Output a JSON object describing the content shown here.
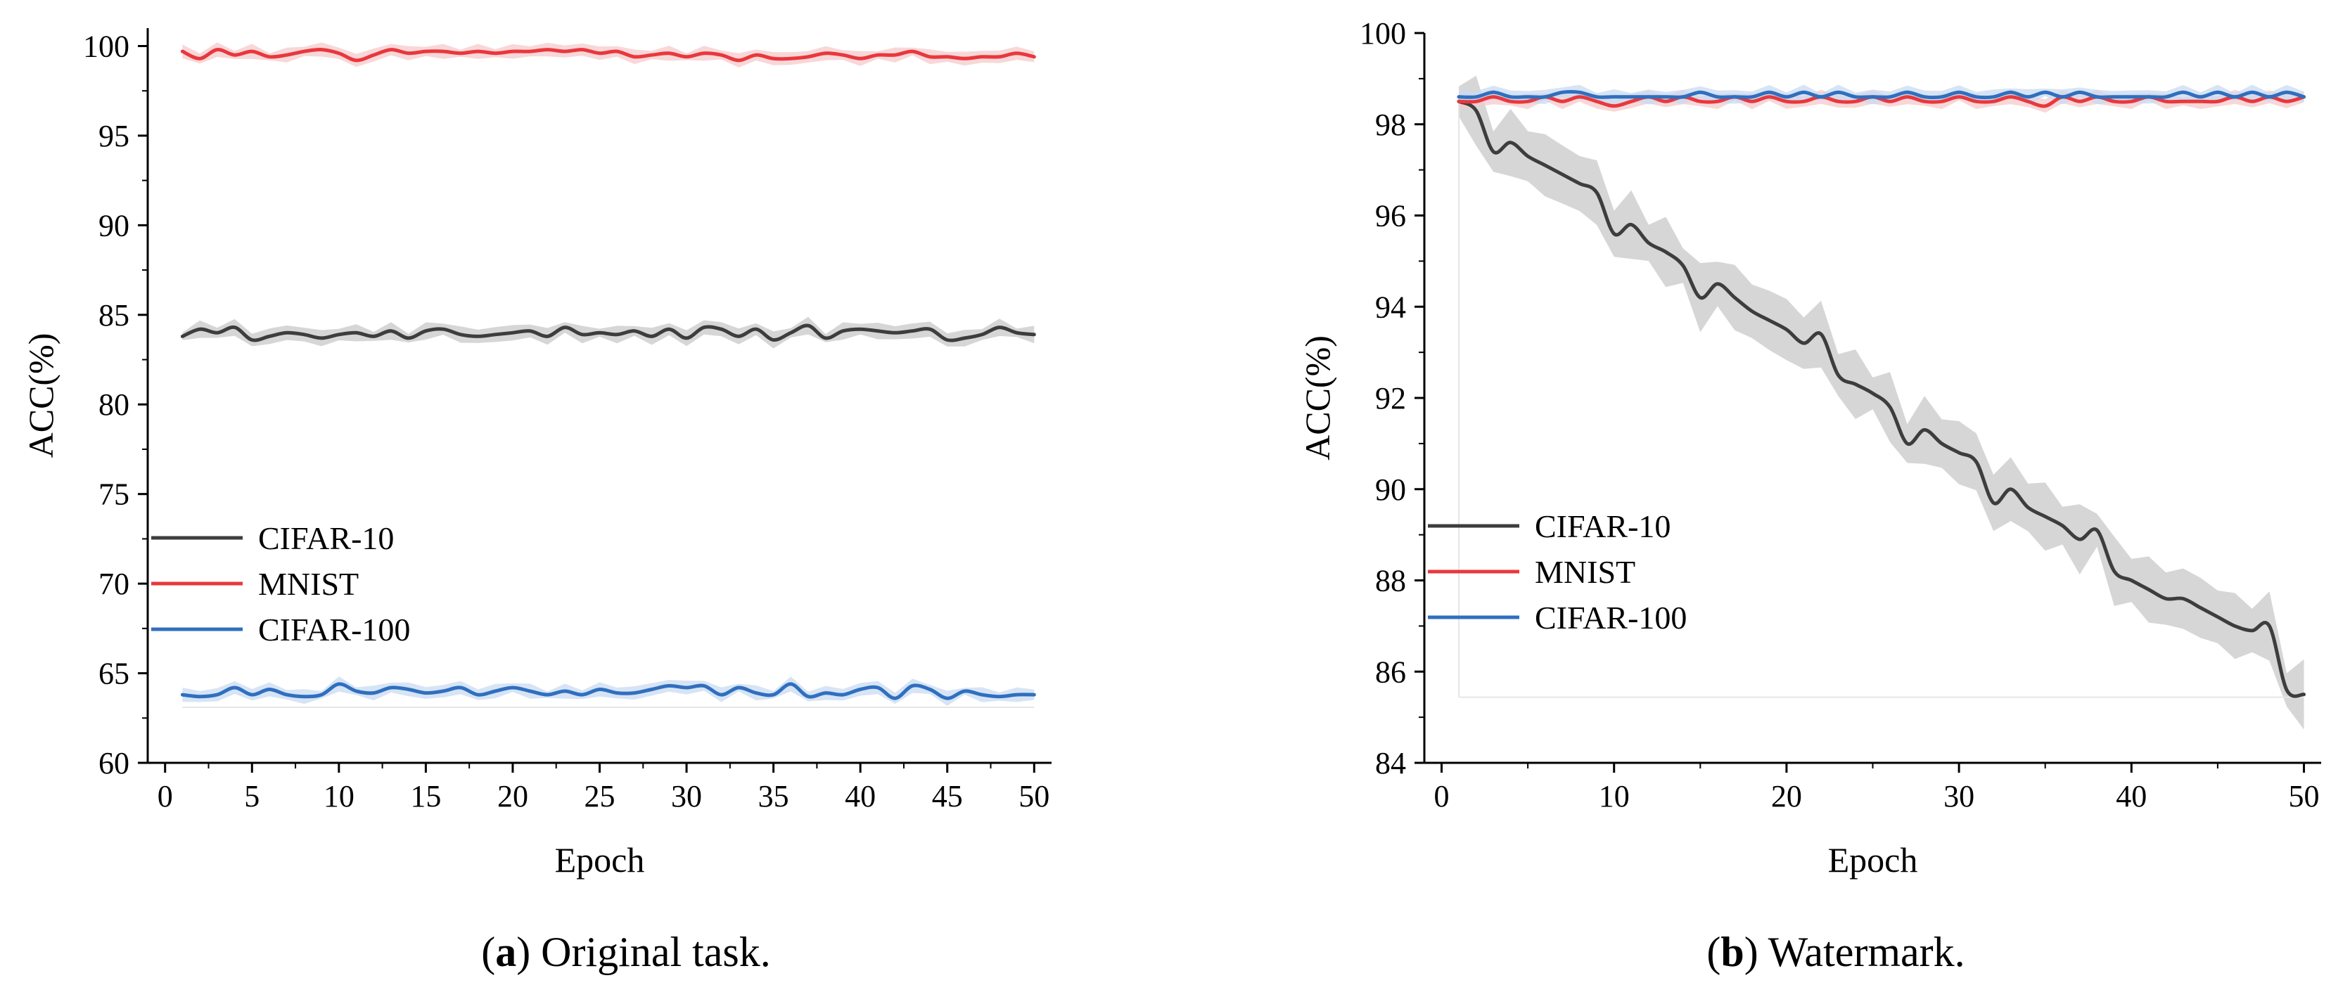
{
  "captions": {
    "a": {
      "open": "(",
      "letter": "a",
      "close": ")",
      "text": "Original task."
    },
    "b": {
      "open": "(",
      "letter": "b",
      "close": ")",
      "text": "Watermark."
    }
  },
  "colors": {
    "CIFAR-10": "#3d3d3d",
    "MNIST": "#e8383d",
    "CIFAR-100": "#2f6fbf",
    "band_CIFAR-10": "#c8c8c8",
    "band_MNIST": "#f6c9cb",
    "band_CIFAR-100": "#c9dbf1"
  },
  "chart_data": [
    {
      "type": "line",
      "title": "",
      "xlabel": "Epoch",
      "ylabel": "ACC(%)",
      "xlim": [
        -1,
        51
      ],
      "ylim": [
        60,
        101
      ],
      "xticks": [
        0,
        5,
        10,
        15,
        20,
        25,
        30,
        35,
        40,
        45,
        50
      ],
      "yticks": [
        60,
        65,
        70,
        75,
        80,
        85,
        90,
        95,
        100
      ],
      "grid": false,
      "legend_position": "lower-left",
      "x": [
        1,
        2,
        3,
        4,
        5,
        6,
        7,
        8,
        9,
        10,
        11,
        12,
        13,
        14,
        15,
        16,
        17,
        18,
        19,
        20,
        21,
        22,
        23,
        24,
        25,
        26,
        27,
        28,
        29,
        30,
        31,
        32,
        33,
        34,
        35,
        36,
        37,
        38,
        39,
        40,
        41,
        42,
        43,
        44,
        45,
        46,
        47,
        48,
        49,
        50
      ],
      "series": [
        {
          "name": "CIFAR-10",
          "values": [
            83.8,
            84.2,
            84.0,
            84.3,
            83.6,
            83.8,
            84.0,
            83.9,
            83.7,
            83.9,
            84.0,
            83.8,
            84.1,
            83.7,
            84.1,
            84.2,
            83.9,
            83.8,
            83.9,
            84.0,
            84.1,
            83.8,
            84.3,
            83.9,
            84.0,
            83.9,
            84.1,
            83.8,
            84.2,
            83.7,
            84.3,
            84.2,
            83.8,
            84.2,
            83.6,
            84.0,
            84.4,
            83.7,
            84.1,
            84.2,
            84.1,
            84.0,
            84.1,
            84.2,
            83.6,
            83.7,
            83.9,
            84.3,
            84.0,
            83.9
          ]
        },
        {
          "name": "MNIST",
          "values": [
            99.7,
            99.3,
            99.8,
            99.5,
            99.7,
            99.4,
            99.5,
            99.7,
            99.8,
            99.6,
            99.2,
            99.5,
            99.8,
            99.6,
            99.7,
            99.7,
            99.6,
            99.7,
            99.6,
            99.7,
            99.7,
            99.8,
            99.7,
            99.8,
            99.6,
            99.7,
            99.4,
            99.5,
            99.6,
            99.4,
            99.6,
            99.5,
            99.2,
            99.5,
            99.3,
            99.3,
            99.4,
            99.6,
            99.5,
            99.3,
            99.5,
            99.5,
            99.7,
            99.4,
            99.4,
            99.3,
            99.4,
            99.4,
            99.6,
            99.4
          ]
        },
        {
          "name": "CIFAR-100",
          "values": [
            63.8,
            63.7,
            63.8,
            64.2,
            63.8,
            64.1,
            63.8,
            63.7,
            63.8,
            64.4,
            64.0,
            63.9,
            64.2,
            64.1,
            63.9,
            64.0,
            64.2,
            63.8,
            64.0,
            64.2,
            64.0,
            63.8,
            64.0,
            63.8,
            64.1,
            63.9,
            63.9,
            64.1,
            64.3,
            64.2,
            64.3,
            63.8,
            64.2,
            63.9,
            63.8,
            64.4,
            63.7,
            63.9,
            63.8,
            64.1,
            64.2,
            63.6,
            64.3,
            64.1,
            63.6,
            64.0,
            63.8,
            63.7,
            63.8,
            63.8
          ]
        }
      ]
    },
    {
      "type": "line",
      "title": "",
      "xlabel": "Epoch",
      "ylabel": "ACC(%)",
      "xlim": [
        -1,
        51
      ],
      "ylim": [
        84,
        100
      ],
      "xticks": [
        0,
        10,
        20,
        30,
        40,
        50
      ],
      "yticks": [
        84,
        86,
        88,
        90,
        92,
        94,
        96,
        98,
        100
      ],
      "grid": false,
      "legend_position": "center-left",
      "x": [
        1,
        2,
        3,
        4,
        5,
        6,
        7,
        8,
        9,
        10,
        11,
        12,
        13,
        14,
        15,
        16,
        17,
        18,
        19,
        20,
        21,
        22,
        23,
        24,
        25,
        26,
        27,
        28,
        29,
        30,
        31,
        32,
        33,
        34,
        35,
        36,
        37,
        38,
        39,
        40,
        41,
        42,
        43,
        44,
        45,
        46,
        47,
        48,
        49,
        50
      ],
      "series": [
        {
          "name": "CIFAR-10",
          "values": [
            98.5,
            98.3,
            97.4,
            97.6,
            97.3,
            97.1,
            96.9,
            96.7,
            96.5,
            95.6,
            95.8,
            95.4,
            95.2,
            94.9,
            94.2,
            94.5,
            94.2,
            93.9,
            93.7,
            93.5,
            93.2,
            93.4,
            92.5,
            92.3,
            92.1,
            91.8,
            91.0,
            91.3,
            91.0,
            90.8,
            90.6,
            89.7,
            90.0,
            89.6,
            89.4,
            89.2,
            88.9,
            89.1,
            88.2,
            88.0,
            87.8,
            87.6,
            87.6,
            87.4,
            87.2,
            87.0,
            86.9,
            87.0,
            85.6,
            85.5
          ]
        },
        {
          "name": "MNIST",
          "values": [
            98.5,
            98.5,
            98.6,
            98.5,
            98.5,
            98.6,
            98.5,
            98.6,
            98.5,
            98.4,
            98.5,
            98.6,
            98.5,
            98.6,
            98.5,
            98.5,
            98.6,
            98.5,
            98.6,
            98.5,
            98.5,
            98.6,
            98.5,
            98.5,
            98.6,
            98.5,
            98.6,
            98.5,
            98.5,
            98.6,
            98.5,
            98.5,
            98.6,
            98.5,
            98.4,
            98.6,
            98.5,
            98.6,
            98.5,
            98.5,
            98.6,
            98.5,
            98.5,
            98.5,
            98.5,
            98.6,
            98.5,
            98.6,
            98.5,
            98.6
          ]
        },
        {
          "name": "CIFAR-100",
          "values": [
            98.6,
            98.6,
            98.7,
            98.6,
            98.6,
            98.6,
            98.7,
            98.7,
            98.6,
            98.6,
            98.6,
            98.6,
            98.6,
            98.6,
            98.7,
            98.6,
            98.6,
            98.6,
            98.7,
            98.6,
            98.7,
            98.6,
            98.7,
            98.6,
            98.6,
            98.6,
            98.7,
            98.6,
            98.6,
            98.7,
            98.6,
            98.6,
            98.7,
            98.6,
            98.7,
            98.6,
            98.7,
            98.6,
            98.6,
            98.6,
            98.6,
            98.6,
            98.7,
            98.6,
            98.7,
            98.6,
            98.7,
            98.6,
            98.7,
            98.6
          ]
        }
      ]
    }
  ]
}
